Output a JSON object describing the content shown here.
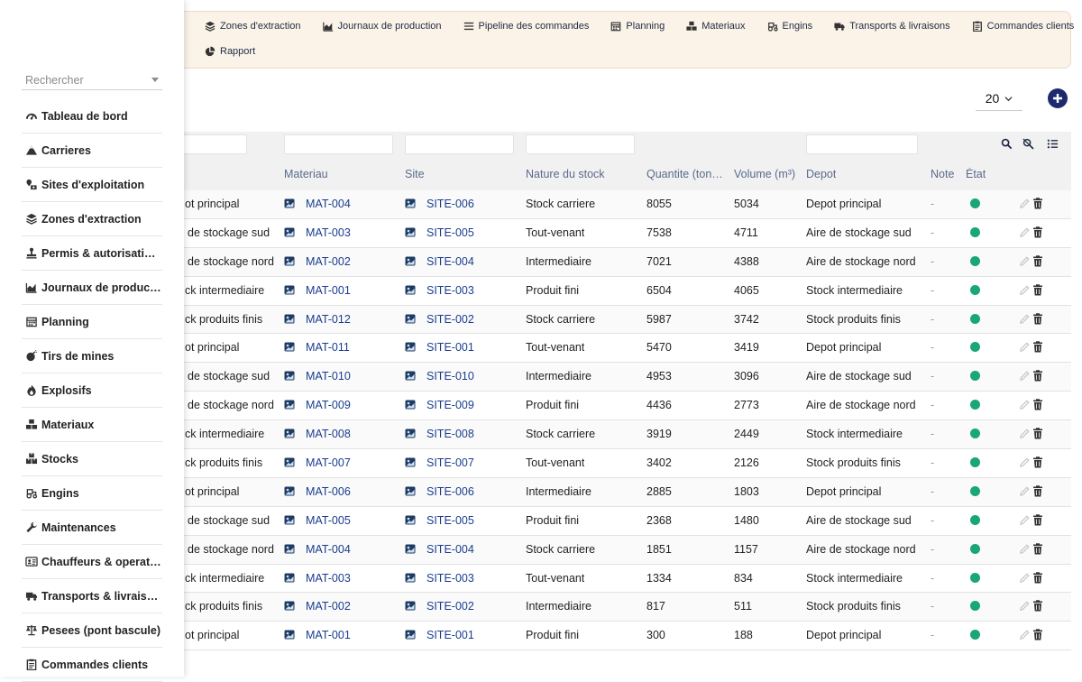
{
  "topnav": {
    "row1": [
      {
        "label": "Zones d'extraction",
        "icon": "layers-icon"
      },
      {
        "label": "Journaux de production",
        "icon": "area-chart-icon"
      },
      {
        "label": "Pipeline des commandes",
        "icon": "list-icon"
      },
      {
        "label": "Planning",
        "icon": "calendar-icon"
      },
      {
        "label": "Materiaux",
        "icon": "cubes-icon"
      },
      {
        "label": "Engins",
        "icon": "tractor-icon"
      },
      {
        "label": "Transports & livraisons",
        "icon": "truck-icon"
      },
      {
        "label": "Commandes clients",
        "icon": "clipboard-icon"
      }
    ],
    "row2": [
      {
        "label": "Rapport",
        "icon": "pie-chart-icon"
      }
    ]
  },
  "pagesize": {
    "value": "20"
  },
  "sidebar": {
    "search_placeholder": "Rechercher",
    "items": [
      {
        "label": "Tableau de bord",
        "icon": "gauge-icon"
      },
      {
        "label": "Carrieres",
        "icon": "mountain-icon"
      },
      {
        "label": "Sites d'exploitation",
        "icon": "map-marker-icon"
      },
      {
        "label": "Zones d'extraction",
        "icon": "layers-icon"
      },
      {
        "label": "Permis & autorisations",
        "icon": "stamp-icon"
      },
      {
        "label": "Journaux de production",
        "icon": "area-chart-icon"
      },
      {
        "label": "Planning",
        "icon": "calendar-icon"
      },
      {
        "label": "Tirs de mines",
        "icon": "bomb-icon"
      },
      {
        "label": "Explosifs",
        "icon": "fire-icon"
      },
      {
        "label": "Materiaux",
        "icon": "cubes-icon"
      },
      {
        "label": "Stocks",
        "icon": "boxes-icon"
      },
      {
        "label": "Engins",
        "icon": "tractor-icon"
      },
      {
        "label": "Maintenances",
        "icon": "wrench-icon"
      },
      {
        "label": "Chauffeurs & operateurs",
        "icon": "id-card-icon"
      },
      {
        "label": "Transports & livraisons",
        "icon": "truck-icon"
      },
      {
        "label": "Pesees (pont bascule)",
        "icon": "balance-scale-icon"
      },
      {
        "label": "Commandes clients",
        "icon": "clipboard-icon"
      }
    ]
  },
  "table": {
    "headers": {
      "materiau": "Materiau",
      "site": "Site",
      "nature": "Nature du stock",
      "quantite": "Quantite (ton…",
      "volume": "Volume (m³)",
      "depot": "Depot",
      "note": "Note",
      "etat": "État"
    },
    "rows": [
      {
        "partial": "ot principal",
        "materiau": "MAT-004",
        "site": "SITE-006",
        "nature": "Stock carriere",
        "quantite": "8055",
        "volume": "5034",
        "depot": "Depot principal",
        "note": "-"
      },
      {
        "partial": "de stockage sud",
        "materiau": "MAT-003",
        "site": "SITE-005",
        "nature": "Tout-venant",
        "quantite": "7538",
        "volume": "4711",
        "depot": "Aire de stockage sud",
        "note": "-"
      },
      {
        "partial": "de stockage nord",
        "materiau": "MAT-002",
        "site": "SITE-004",
        "nature": "Intermediaire",
        "quantite": "7021",
        "volume": "4388",
        "depot": "Aire de stockage nord",
        "note": "-"
      },
      {
        "partial": "ck intermediaire",
        "materiau": "MAT-001",
        "site": "SITE-003",
        "nature": "Produit fini",
        "quantite": "6504",
        "volume": "4065",
        "depot": "Stock intermediaire",
        "note": "-"
      },
      {
        "partial": "ck produits finis",
        "materiau": "MAT-012",
        "site": "SITE-002",
        "nature": "Stock carriere",
        "quantite": "5987",
        "volume": "3742",
        "depot": "Stock produits finis",
        "note": "-"
      },
      {
        "partial": "ot principal",
        "materiau": "MAT-011",
        "site": "SITE-001",
        "nature": "Tout-venant",
        "quantite": "5470",
        "volume": "3419",
        "depot": "Depot principal",
        "note": "-"
      },
      {
        "partial": "de stockage sud",
        "materiau": "MAT-010",
        "site": "SITE-010",
        "nature": "Intermediaire",
        "quantite": "4953",
        "volume": "3096",
        "depot": "Aire de stockage sud",
        "note": "-"
      },
      {
        "partial": "de stockage nord",
        "materiau": "MAT-009",
        "site": "SITE-009",
        "nature": "Produit fini",
        "quantite": "4436",
        "volume": "2773",
        "depot": "Aire de stockage nord",
        "note": "-"
      },
      {
        "partial": "ck intermediaire",
        "materiau": "MAT-008",
        "site": "SITE-008",
        "nature": "Stock carriere",
        "quantite": "3919",
        "volume": "2449",
        "depot": "Stock intermediaire",
        "note": "-"
      },
      {
        "partial": "ck produits finis",
        "materiau": "MAT-007",
        "site": "SITE-007",
        "nature": "Tout-venant",
        "quantite": "3402",
        "volume": "2126",
        "depot": "Stock produits finis",
        "note": "-"
      },
      {
        "partial": "ot principal",
        "materiau": "MAT-006",
        "site": "SITE-006",
        "nature": "Intermediaire",
        "quantite": "2885",
        "volume": "1803",
        "depot": "Depot principal",
        "note": "-"
      },
      {
        "partial": "de stockage sud",
        "materiau": "MAT-005",
        "site": "SITE-005",
        "nature": "Produit fini",
        "quantite": "2368",
        "volume": "1480",
        "depot": "Aire de stockage sud",
        "note": "-"
      },
      {
        "partial": "de stockage nord",
        "materiau": "MAT-004",
        "site": "SITE-004",
        "nature": "Stock carriere",
        "quantite": "1851",
        "volume": "1157",
        "depot": "Aire de stockage nord",
        "note": "-"
      },
      {
        "partial": "ck intermediaire",
        "materiau": "MAT-003",
        "site": "SITE-003",
        "nature": "Tout-venant",
        "quantite": "1334",
        "volume": "834",
        "depot": "Stock intermediaire",
        "note": "-"
      },
      {
        "partial": "ck produits finis",
        "materiau": "MAT-002",
        "site": "SITE-002",
        "nature": "Intermediaire",
        "quantite": "817",
        "volume": "511",
        "depot": "Stock produits finis",
        "note": "-"
      },
      {
        "partial": "ot principal",
        "materiau": "MAT-001",
        "site": "SITE-001",
        "nature": "Produit fini",
        "quantite": "300",
        "volume": "188",
        "depot": "Depot principal",
        "note": "-"
      }
    ]
  },
  "colors": {
    "accent": "#1e2a6e",
    "link": "#1a3d8f",
    "status_ok": "#1aa57a",
    "nav_bg": "#fbf3e7"
  }
}
